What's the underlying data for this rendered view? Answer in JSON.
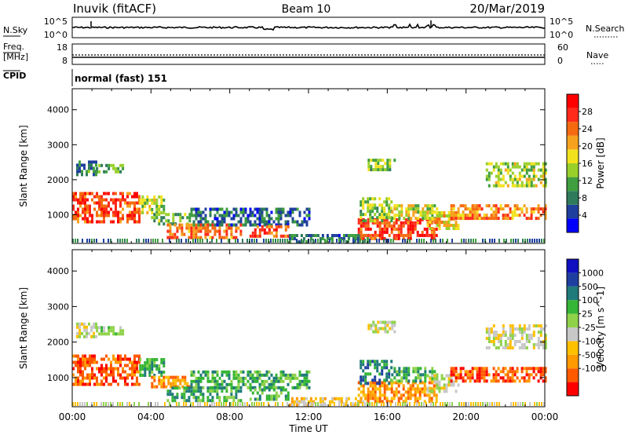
{
  "header": {
    "station": "Inuvik (fitACF)",
    "beam": "Beam 10",
    "date": "20/Mar/2019"
  },
  "noise_panel": {
    "left_label": "N.Sky",
    "right_label": "N.Search",
    "left_ticks": [
      "10^5",
      "10^0"
    ],
    "right_ticks": [
      "10^5",
      "10^0"
    ]
  },
  "freq_panel": {
    "left_label_1": "Freq.",
    "left_label_2": "[MHz]",
    "right_label": "Nave",
    "left_ticks": [
      "18",
      "8"
    ],
    "right_ticks": [
      "60",
      "0"
    ]
  },
  "cpid": {
    "label": "CPID",
    "text": "normal (fast) 151"
  },
  "time_axis": {
    "label": "Time UT",
    "ticks": [
      "00:00",
      "04:00",
      "08:00",
      "12:00",
      "16:00",
      "20:00",
      "00:00"
    ]
  },
  "colors": {
    "power": [
      "#0000ff",
      "#1f3f9c",
      "#2e7a5a",
      "#3f9e3f",
      "#9ad02a",
      "#f2e21e",
      "#f7a21e",
      "#f56a10",
      "#ff2a1a",
      "#ff0000"
    ],
    "velocity": [
      "#ff0000",
      "#ff5a00",
      "#ff9a00",
      "#ffc000",
      "#c8c8c8",
      "#8fd24a",
      "#35b535",
      "#1f7a7a",
      "#1f3fa0",
      "#1010c0"
    ]
  },
  "chart_data": [
    {
      "type": "heatmap",
      "title": "",
      "xlabel": "",
      "ylabel": "Slant Range [km]",
      "xlim": [
        0,
        24
      ],
      "ylim": [
        180,
        4600
      ],
      "yticks": [
        "1000",
        "2000",
        "3000",
        "4000"
      ],
      "colorbar": {
        "label": "Power [dB]",
        "ticks": [
          "4",
          "8",
          "12",
          "16",
          "20",
          "24",
          "28"
        ],
        "range": [
          0,
          32
        ]
      },
      "regions": [
        {
          "t0": 0.0,
          "t1": 3.4,
          "r0": 800,
          "r1": 1650,
          "v": 26
        },
        {
          "t0": 0.2,
          "t1": 1.2,
          "r0": 2150,
          "r1": 2550,
          "v": 9
        },
        {
          "t0": 1.2,
          "t1": 2.6,
          "r0": 2200,
          "r1": 2450,
          "v": 11
        },
        {
          "t0": 3.4,
          "t1": 4.6,
          "r0": 1100,
          "r1": 1550,
          "v": 15
        },
        {
          "t0": 4.0,
          "t1": 6.0,
          "r0": 700,
          "r1": 1050,
          "v": 12
        },
        {
          "t0": 4.8,
          "t1": 8.6,
          "r0": 350,
          "r1": 750,
          "v": 24
        },
        {
          "t0": 6.0,
          "t1": 12.0,
          "r0": 700,
          "r1": 1200,
          "v": 7
        },
        {
          "t0": 9.0,
          "t1": 11.0,
          "r0": 350,
          "r1": 700,
          "v": 25
        },
        {
          "t0": 11.0,
          "t1": 15.0,
          "r0": 250,
          "r1": 450,
          "v": 8
        },
        {
          "t0": 14.5,
          "t1": 18.5,
          "r0": 300,
          "r1": 900,
          "v": 27
        },
        {
          "t0": 14.6,
          "t1": 16.2,
          "r0": 800,
          "r1": 1500,
          "v": 14
        },
        {
          "t0": 15.0,
          "t1": 16.4,
          "r0": 2300,
          "r1": 2600,
          "v": 14
        },
        {
          "t0": 16.2,
          "t1": 18.5,
          "r0": 900,
          "r1": 1300,
          "v": 16
        },
        {
          "t0": 18.0,
          "t1": 19.6,
          "r0": 600,
          "r1": 1100,
          "v": 18
        },
        {
          "t0": 19.2,
          "t1": 24.0,
          "r0": 900,
          "r1": 1300,
          "v": 23
        },
        {
          "t0": 21.0,
          "t1": 24.0,
          "r0": 1800,
          "r1": 2500,
          "v": 15
        }
      ]
    },
    {
      "type": "heatmap",
      "title": "",
      "xlabel": "Time UT",
      "ylabel": "Slant Range [km]",
      "xlim": [
        0,
        24
      ],
      "ylim": [
        180,
        4600
      ],
      "yticks": [
        "1000",
        "2000",
        "3000",
        "4000"
      ],
      "colorbar": {
        "label": "Velocity [m s^-1]",
        "ticks": [
          "1000",
          "500",
          "100",
          "25",
          "-25",
          "-100",
          "-500",
          "-1000"
        ],
        "bins": 10
      },
      "regions": [
        {
          "t0": 0.0,
          "t1": 3.4,
          "r0": 800,
          "r1": 1650,
          "bin": 1
        },
        {
          "t0": 0.2,
          "t1": 1.2,
          "r0": 2150,
          "r1": 2550,
          "bin": 4
        },
        {
          "t0": 1.2,
          "t1": 2.6,
          "r0": 2200,
          "r1": 2450,
          "bin": 5
        },
        {
          "t0": 3.4,
          "t1": 4.6,
          "r0": 1100,
          "r1": 1550,
          "bin": 6
        },
        {
          "t0": 4.0,
          "t1": 6.0,
          "r0": 700,
          "r1": 1050,
          "bin": 2
        },
        {
          "t0": 4.8,
          "t1": 8.6,
          "r0": 350,
          "r1": 750,
          "bin": 6
        },
        {
          "t0": 6.0,
          "t1": 12.0,
          "r0": 700,
          "r1": 1200,
          "bin": 6
        },
        {
          "t0": 9.0,
          "t1": 11.0,
          "r0": 350,
          "r1": 700,
          "bin": 6
        },
        {
          "t0": 11.0,
          "t1": 15.0,
          "r0": 250,
          "r1": 450,
          "bin": 3
        },
        {
          "t0": 14.5,
          "t1": 18.5,
          "r0": 300,
          "r1": 900,
          "bin": 2
        },
        {
          "t0": 14.6,
          "t1": 16.2,
          "r0": 800,
          "r1": 1500,
          "bin": 7
        },
        {
          "t0": 15.0,
          "t1": 16.4,
          "r0": 2300,
          "r1": 2600,
          "bin": 4
        },
        {
          "t0": 16.2,
          "t1": 18.5,
          "r0": 900,
          "r1": 1300,
          "bin": 6
        },
        {
          "t0": 18.0,
          "t1": 19.6,
          "r0": 600,
          "r1": 1100,
          "bin": 4
        },
        {
          "t0": 19.2,
          "t1": 24.0,
          "r0": 900,
          "r1": 1300,
          "bin": 1
        },
        {
          "t0": 21.0,
          "t1": 24.0,
          "r0": 1800,
          "r1": 2500,
          "bin": 4
        }
      ]
    }
  ]
}
